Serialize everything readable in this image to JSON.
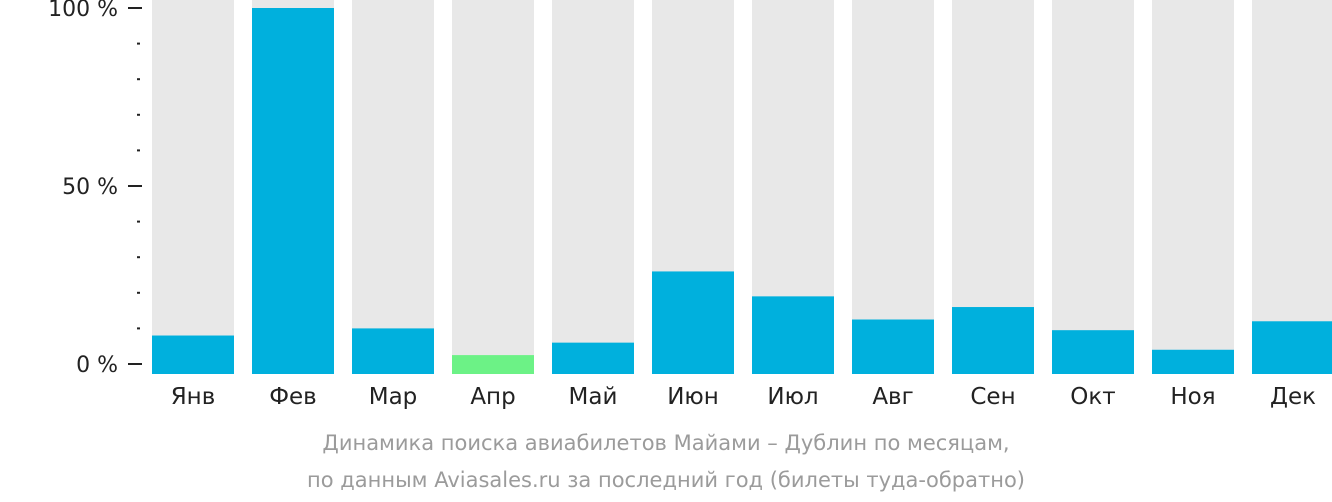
{
  "chart_data": {
    "type": "bar",
    "categories": [
      "Янв",
      "Фев",
      "Мар",
      "Апр",
      "Май",
      "Июн",
      "Июл",
      "Авг",
      "Сен",
      "Окт",
      "Ноя",
      "Дек"
    ],
    "values": [
      8,
      100,
      10,
      2.5,
      6,
      26,
      19,
      12.5,
      16,
      9.5,
      4,
      12
    ],
    "highlight_index": 3,
    "ylim": [
      0,
      100
    ],
    "ytick_labels": [
      "0 %",
      "50 %",
      "100 %"
    ],
    "ytick_values": [
      0,
      50,
      100
    ],
    "minor_tick_step": 10,
    "title": "",
    "xlabel": "",
    "ylabel": "",
    "grid": false,
    "colors": {
      "bar": "#00b0dd",
      "highlight": "#6cf286",
      "background_bar": "#e8e8e8",
      "axis": "#222222"
    }
  },
  "caption": {
    "line1": "Динамика поиска авиабилетов Майами – Дублин по месяцам,",
    "line2": "по данным Aviasales.ru за последний год (билеты туда-обратно)"
  }
}
